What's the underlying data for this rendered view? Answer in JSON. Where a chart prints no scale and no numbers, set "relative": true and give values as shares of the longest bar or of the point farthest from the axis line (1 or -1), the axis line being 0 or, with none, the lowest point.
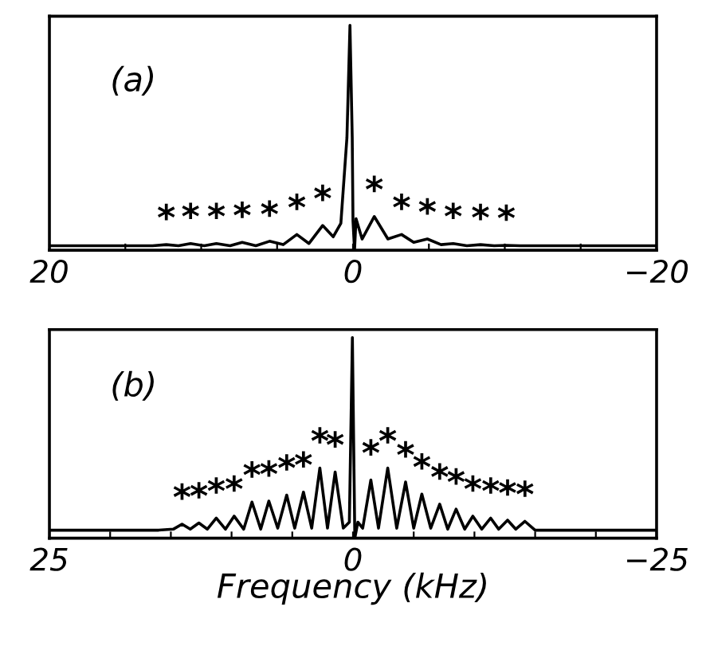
{
  "chart_data": [
    {
      "type": "line",
      "relative": true,
      "xlim": [
        20,
        -20
      ],
      "tick_labels": "x",
      "grid": false,
      "xticks": [
        {
          "value": 20,
          "label": "20"
        },
        {
          "value": 15,
          "label": null
        },
        {
          "value": 10,
          "label": null
        },
        {
          "value": 5,
          "label": null
        },
        {
          "value": 0,
          "label": "0"
        },
        {
          "value": -5,
          "label": null
        },
        {
          "value": -10,
          "label": null
        },
        {
          "value": -15,
          "label": null
        },
        {
          "value": -20,
          "label": "−20"
        }
      ],
      "series": [
        {
          "color": "#000000",
          "x": [
            20,
            15,
            13.2,
            12.3,
            11.5,
            10.7,
            9.8,
            9.0,
            8.1,
            7.3,
            6.4,
            5.5,
            4.6,
            3.7,
            2.9,
            2.0,
            1.3,
            0.8,
            0.4,
            0.2,
            0.05,
            0.0,
            -0.1,
            -0.2,
            -0.6,
            -1.4,
            -2.3,
            -3.2,
            -4.0,
            -4.9,
            -5.8,
            -6.6,
            -7.5,
            -8.4,
            -9.3,
            -10.1,
            -11,
            -15,
            -20
          ],
          "values": [
            0.02,
            0.02,
            0.02,
            0.025,
            0.02,
            0.03,
            0.02,
            0.03,
            0.02,
            0.035,
            0.02,
            0.04,
            0.025,
            0.07,
            0.03,
            0.11,
            0.06,
            0.12,
            0.5,
            1.0,
            0.5,
            0.13,
            0.0,
            0.14,
            0.05,
            0.15,
            0.05,
            0.07,
            0.035,
            0.05,
            0.025,
            0.03,
            0.02,
            0.025,
            0.02,
            0.022,
            0.02,
            0.02,
            0.02
          ]
        }
      ],
      "annotations": [
        "(a)",
        {
          "text": "*",
          "x": 12.3,
          "y": 0.025
        },
        {
          "text": "*",
          "x": 10.7,
          "y": 0.03
        },
        {
          "text": "*",
          "x": 9.0,
          "y": 0.03
        },
        {
          "text": "*",
          "x": 7.3,
          "y": 0.035
        },
        {
          "text": "*",
          "x": 5.5,
          "y": 0.04
        },
        {
          "text": "*",
          "x": 3.7,
          "y": 0.07
        },
        {
          "text": "*",
          "x": 2.0,
          "y": 0.11
        },
        {
          "text": "*",
          "x": -1.4,
          "y": 0.15
        },
        {
          "text": "*",
          "x": -3.2,
          "y": 0.07
        },
        {
          "text": "*",
          "x": -4.9,
          "y": 0.05
        },
        {
          "text": "*",
          "x": -6.6,
          "y": 0.03
        },
        {
          "text": "*",
          "x": -8.4,
          "y": 0.025
        },
        {
          "text": "*",
          "x": -10.1,
          "y": 0.022
        }
      ]
    },
    {
      "type": "line",
      "relative": true,
      "xlim": [
        25,
        -25
      ],
      "tick_labels": "x",
      "grid": false,
      "xlabel": "Frequency (kHz)",
      "xticks": [
        {
          "value": 25,
          "label": "25"
        },
        {
          "value": 20,
          "label": null
        },
        {
          "value": 15,
          "label": null
        },
        {
          "value": 10,
          "label": null
        },
        {
          "value": 5,
          "label": null
        },
        {
          "value": 0,
          "label": "0"
        },
        {
          "value": -5,
          "label": null
        },
        {
          "value": -10,
          "label": null
        },
        {
          "value": -15,
          "label": null
        },
        {
          "value": -20,
          "label": null
        },
        {
          "value": -25,
          "label": "−25"
        }
      ],
      "series": [
        {
          "color": "#000000",
          "x": [
            25,
            20,
            16,
            14.8,
            14.08,
            13.4,
            12.69,
            12.0,
            11.26,
            10.5,
            9.79,
            9.0,
            8.32,
            7.6,
            6.93,
            6.2,
            5.46,
            4.8,
            4.08,
            3.4,
            2.73,
            2.1,
            1.47,
            0.8,
            0.3,
            0.05,
            -0.15,
            -0.4,
            -0.8,
            -1.47,
            -2.1,
            -2.86,
            -3.6,
            -4.33,
            -5.0,
            -5.67,
            -6.4,
            -7.14,
            -7.8,
            -8.49,
            -9.2,
            -9.87,
            -10.6,
            -11.34,
            -12.0,
            -12.73,
            -13.4,
            -14.16,
            -15.0,
            -20,
            -25
          ],
          "values": [
            0.04,
            0.04,
            0.04,
            0.045,
            0.07,
            0.045,
            0.076,
            0.045,
            0.1,
            0.045,
            0.11,
            0.045,
            0.18,
            0.045,
            0.185,
            0.05,
            0.215,
            0.05,
            0.23,
            0.05,
            0.35,
            0.05,
            0.33,
            0.05,
            0.08,
            1.0,
            0.0,
            0.08,
            0.05,
            0.29,
            0.05,
            0.35,
            0.05,
            0.28,
            0.05,
            0.22,
            0.05,
            0.17,
            0.045,
            0.145,
            0.045,
            0.11,
            0.045,
            0.1,
            0.045,
            0.09,
            0.045,
            0.084,
            0.04,
            0.04,
            0.04
          ]
        }
      ],
      "annotations": [
        "(b)",
        {
          "text": "*",
          "x": 14.08,
          "y": 0.07
        },
        {
          "text": "*",
          "x": 12.69,
          "y": 0.076
        },
        {
          "text": "*",
          "x": 11.26,
          "y": 0.1
        },
        {
          "text": "*",
          "x": 9.79,
          "y": 0.11
        },
        {
          "text": "*",
          "x": 8.32,
          "y": 0.18
        },
        {
          "text": "*",
          "x": 6.93,
          "y": 0.185
        },
        {
          "text": "*",
          "x": 5.46,
          "y": 0.215
        },
        {
          "text": "*",
          "x": 4.08,
          "y": 0.23
        },
        {
          "text": "*",
          "x": 2.73,
          "y": 0.35
        },
        {
          "text": "*",
          "x": 1.47,
          "y": 0.33
        },
        {
          "text": "*",
          "x": -1.47,
          "y": 0.29
        },
        {
          "text": "*",
          "x": -2.86,
          "y": 0.35
        },
        {
          "text": "*",
          "x": -4.33,
          "y": 0.28
        },
        {
          "text": "*",
          "x": -5.67,
          "y": 0.22
        },
        {
          "text": "*",
          "x": -7.14,
          "y": 0.17
        },
        {
          "text": "*",
          "x": -8.49,
          "y": 0.145
        },
        {
          "text": "*",
          "x": -9.87,
          "y": 0.11
        },
        {
          "text": "*",
          "x": -11.34,
          "y": 0.1
        },
        {
          "text": "*",
          "x": -12.73,
          "y": 0.09
        },
        {
          "text": "*",
          "x": -14.16,
          "y": 0.084
        }
      ]
    }
  ]
}
